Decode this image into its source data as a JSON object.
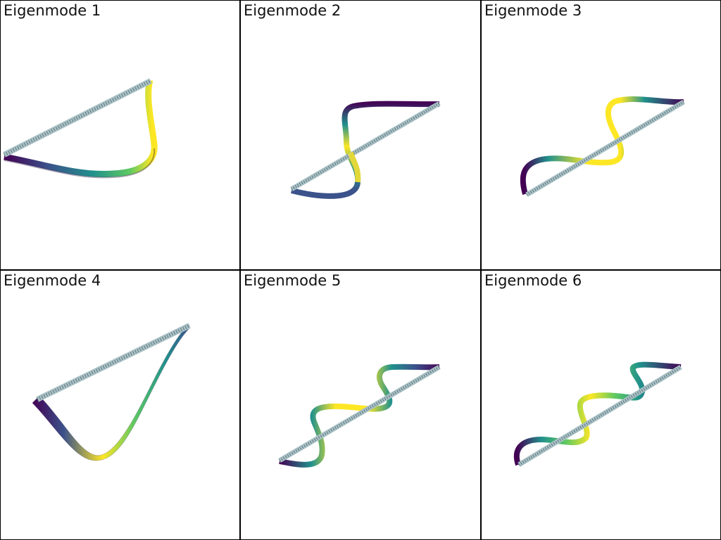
{
  "figure": {
    "panels": [
      {
        "title": "Eigenmode 1"
      },
      {
        "title": "Eigenmode 2"
      },
      {
        "title": "Eigenmode 3"
      },
      {
        "title": "Eigenmode 4"
      },
      {
        "title": "Eigenmode 5"
      },
      {
        "title": "Eigenmode 6"
      }
    ],
    "colors": {
      "undeformed_beam": "#a9c2c7",
      "mesh_lines": "#3a4a50",
      "colormap": [
        "#440154",
        "#3b528b",
        "#21918c",
        "#5ec962",
        "#fde725"
      ],
      "divider": "#000000",
      "background": "#ffffff"
    }
  }
}
